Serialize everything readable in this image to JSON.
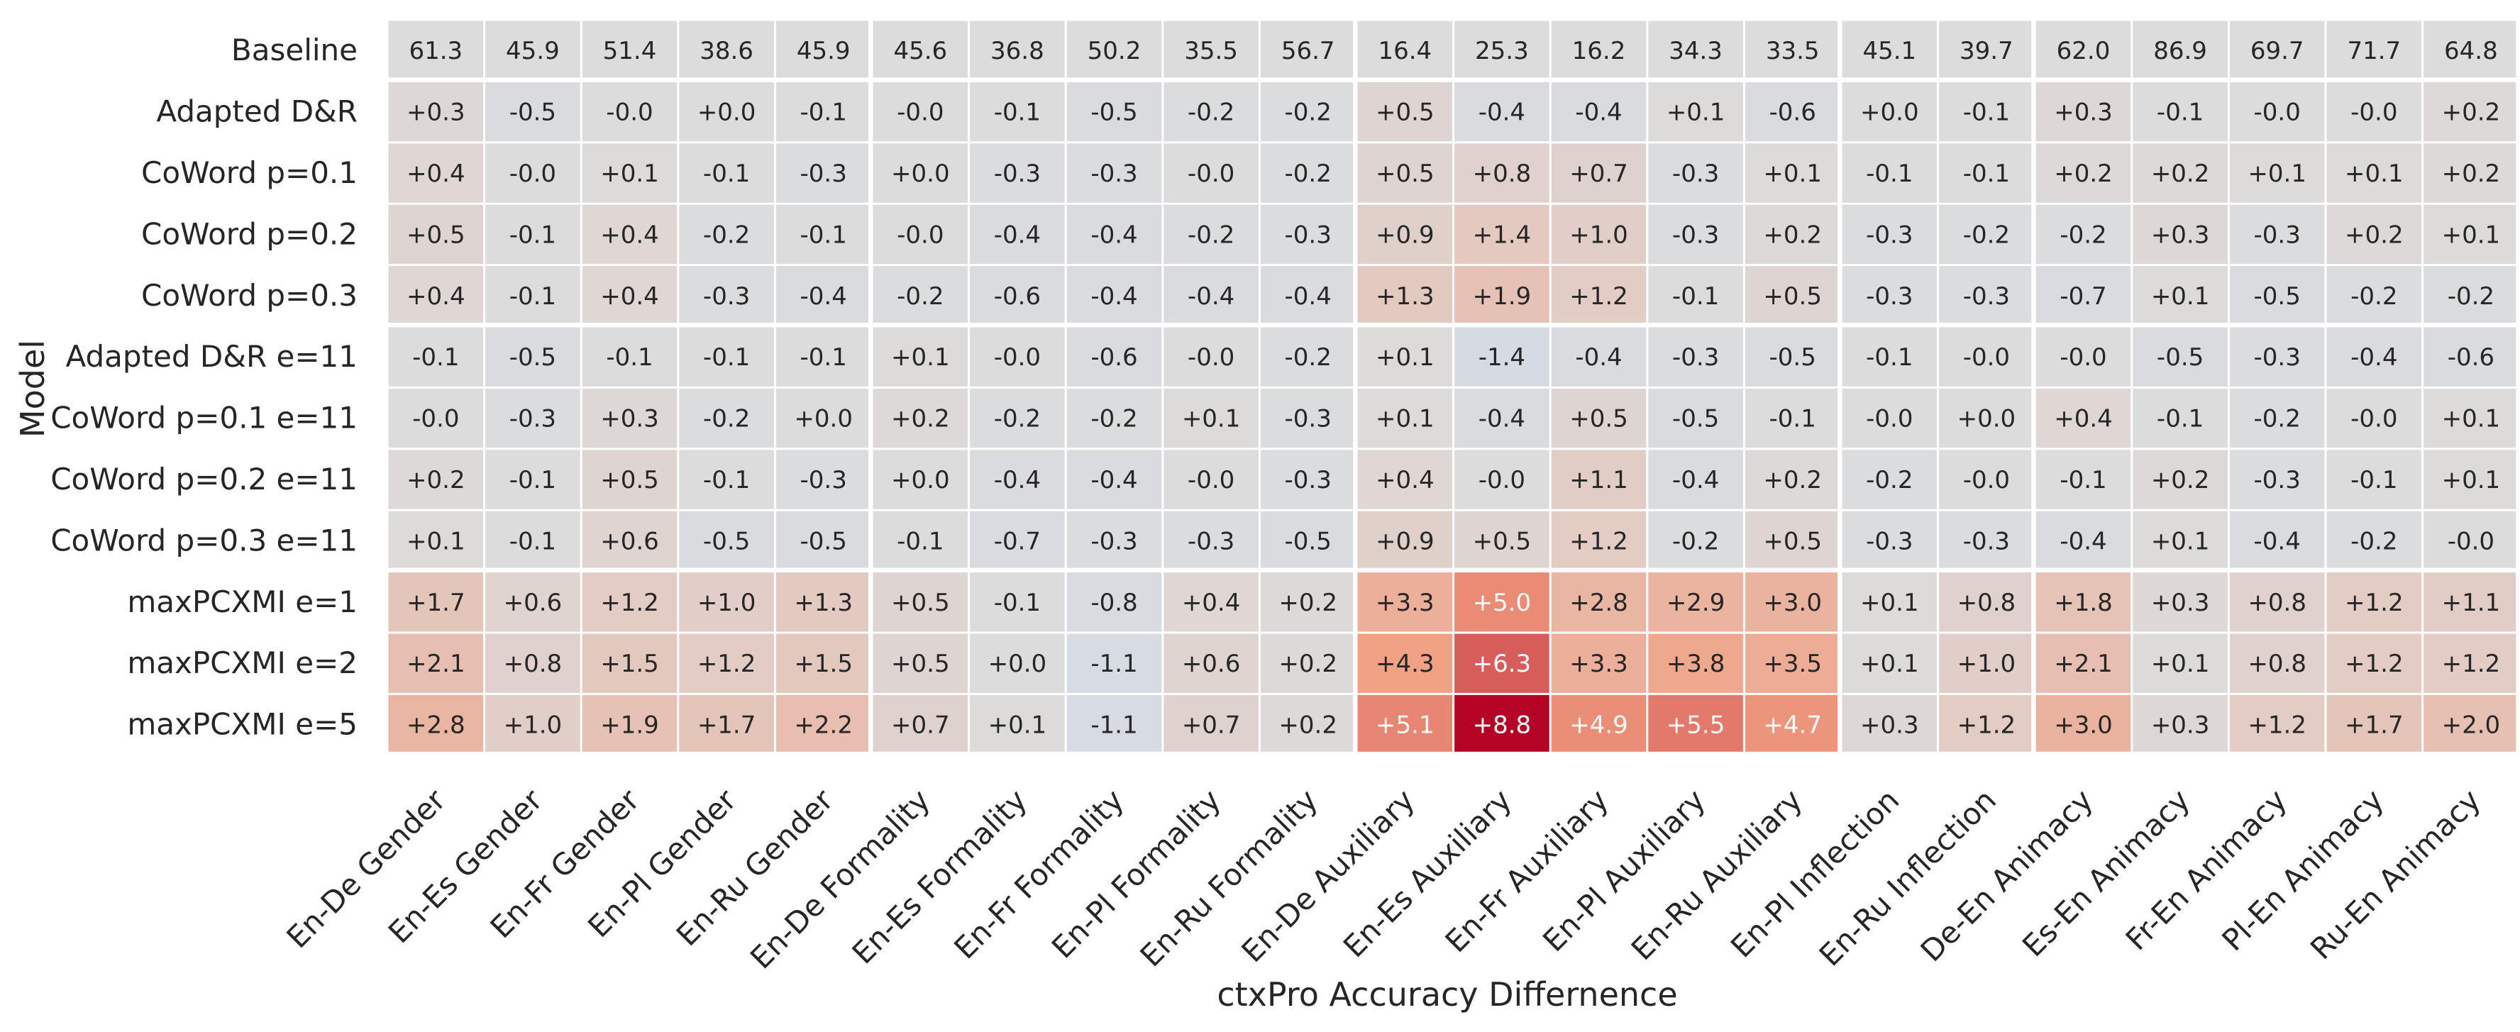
{
  "chart_data": {
    "type": "heatmap",
    "title": "",
    "xlabel": "ctxPro Accuracy Differnence",
    "ylabel": "Model",
    "columns": [
      "En-De Gender",
      "En-Es Gender",
      "En-Fr Gender",
      "En-Pl Gender",
      "En-Ru Gender",
      "En-De Formality",
      "En-Es Formality",
      "En-Fr Formality",
      "En-Pl Formality",
      "En-Ru Formality",
      "En-De Auxiliary",
      "En-Es Auxiliary",
      "En-Fr Auxiliary",
      "En-Pl Auxiliary",
      "En-Ru Auxiliary",
      "En-Pl Inflection",
      "En-Ru Inflection",
      "De-En Animacy",
      "Es-En Animacy",
      "Fr-En Animacy",
      "Pl-En Animacy",
      "Ru-En Animacy"
    ],
    "rows": [
      "Baseline",
      "Adapted D&R",
      "CoWord p=0.1",
      "CoWord p=0.2",
      "CoWord p=0.3",
      "Adapted D&R e=11",
      "CoWord p=0.1 e=11",
      "CoWord p=0.2 e=11",
      "CoWord p=0.3 e=11",
      "maxPCXMI e=1",
      "maxPCXMI e=2",
      "maxPCXMI e=5"
    ],
    "labels": [
      [
        "61.3",
        "45.9",
        "51.4",
        "38.6",
        "45.9",
        "45.6",
        "36.8",
        "50.2",
        "35.5",
        "56.7",
        "16.4",
        "25.3",
        "16.2",
        "34.3",
        "33.5",
        "45.1",
        "39.7",
        "62.0",
        "86.9",
        "69.7",
        "71.7",
        "64.8"
      ],
      [
        "+0.3",
        "-0.5",
        "-0.0",
        "+0.0",
        "-0.1",
        "-0.0",
        "-0.1",
        "-0.5",
        "-0.2",
        "-0.2",
        "+0.5",
        "-0.4",
        "-0.4",
        "+0.1",
        "-0.6",
        "+0.0",
        "-0.1",
        "+0.3",
        "-0.1",
        "-0.0",
        "-0.0",
        "+0.2"
      ],
      [
        "+0.4",
        "-0.0",
        "+0.1",
        "-0.1",
        "-0.3",
        "+0.0",
        "-0.3",
        "-0.3",
        "-0.0",
        "-0.2",
        "+0.5",
        "+0.8",
        "+0.7",
        "-0.3",
        "+0.1",
        "-0.1",
        "-0.1",
        "+0.2",
        "+0.2",
        "+0.1",
        "+0.1",
        "+0.2"
      ],
      [
        "+0.5",
        "-0.1",
        "+0.4",
        "-0.2",
        "-0.1",
        "-0.0",
        "-0.4",
        "-0.4",
        "-0.2",
        "-0.3",
        "+0.9",
        "+1.4",
        "+1.0",
        "-0.3",
        "+0.2",
        "-0.3",
        "-0.2",
        "-0.2",
        "+0.3",
        "-0.3",
        "+0.2",
        "+0.1"
      ],
      [
        "+0.4",
        "-0.1",
        "+0.4",
        "-0.3",
        "-0.4",
        "-0.2",
        "-0.6",
        "-0.4",
        "-0.4",
        "-0.4",
        "+1.3",
        "+1.9",
        "+1.2",
        "-0.1",
        "+0.5",
        "-0.3",
        "-0.3",
        "-0.7",
        "+0.1",
        "-0.5",
        "-0.2",
        "-0.2"
      ],
      [
        "-0.1",
        "-0.5",
        "-0.1",
        "-0.1",
        "-0.1",
        "+0.1",
        "-0.0",
        "-0.6",
        "-0.0",
        "-0.2",
        "+0.1",
        "-1.4",
        "-0.4",
        "-0.3",
        "-0.5",
        "-0.1",
        "-0.0",
        "-0.0",
        "-0.5",
        "-0.3",
        "-0.4",
        "-0.6"
      ],
      [
        "-0.0",
        "-0.3",
        "+0.3",
        "-0.2",
        "+0.0",
        "+0.2",
        "-0.2",
        "-0.2",
        "+0.1",
        "-0.3",
        "+0.1",
        "-0.4",
        "+0.5",
        "-0.5",
        "-0.1",
        "-0.0",
        "+0.0",
        "+0.4",
        "-0.1",
        "-0.2",
        "-0.0",
        "+0.1"
      ],
      [
        "+0.2",
        "-0.1",
        "+0.5",
        "-0.1",
        "-0.3",
        "+0.0",
        "-0.4",
        "-0.4",
        "-0.0",
        "-0.3",
        "+0.4",
        "-0.0",
        "+1.1",
        "-0.4",
        "+0.2",
        "-0.2",
        "-0.0",
        "-0.1",
        "+0.2",
        "-0.3",
        "-0.1",
        "+0.1"
      ],
      [
        "+0.1",
        "-0.1",
        "+0.6",
        "-0.5",
        "-0.5",
        "-0.1",
        "-0.7",
        "-0.3",
        "-0.3",
        "-0.5",
        "+0.9",
        "+0.5",
        "+1.2",
        "-0.2",
        "+0.5",
        "-0.3",
        "-0.3",
        "-0.4",
        "+0.1",
        "-0.4",
        "-0.2",
        "-0.0"
      ],
      [
        "+1.7",
        "+0.6",
        "+1.2",
        "+1.0",
        "+1.3",
        "+0.5",
        "-0.1",
        "-0.8",
        "+0.4",
        "+0.2",
        "+3.3",
        "+5.0",
        "+2.8",
        "+2.9",
        "+3.0",
        "+0.1",
        "+0.8",
        "+1.8",
        "+0.3",
        "+0.8",
        "+1.2",
        "+1.1"
      ],
      [
        "+2.1",
        "+0.8",
        "+1.5",
        "+1.2",
        "+1.5",
        "+0.5",
        "+0.0",
        "-1.1",
        "+0.6",
        "+0.2",
        "+4.3",
        "+6.3",
        "+3.3",
        "+3.8",
        "+3.5",
        "+0.1",
        "+1.0",
        "+2.1",
        "+0.1",
        "+0.8",
        "+1.2",
        "+1.2"
      ],
      [
        "+2.8",
        "+1.0",
        "+1.9",
        "+1.7",
        "+2.2",
        "+0.7",
        "+0.1",
        "-1.1",
        "+0.7",
        "+0.2",
        "+5.1",
        "+8.8",
        "+4.9",
        "+5.5",
        "+4.7",
        "+0.3",
        "+1.2",
        "+3.0",
        "+0.3",
        "+1.2",
        "+1.7",
        "+2.0"
      ]
    ],
    "baseline_row_neutral": true,
    "column_groups": [
      {
        "name": "Gender",
        "count": 5
      },
      {
        "name": "Formality",
        "count": 5
      },
      {
        "name": "Auxiliary",
        "count": 5
      },
      {
        "name": "Inflection",
        "count": 2
      },
      {
        "name": "Animacy",
        "count": 5
      }
    ],
    "row_groups": [
      1,
      4,
      4,
      3
    ],
    "colormap": "coolwarm",
    "color_range": [
      -8.8,
      8.8
    ],
    "colors": {
      "neutral": "#dcdcdc",
      "low": "#3b4cc0",
      "high": "#b40426"
    }
  }
}
